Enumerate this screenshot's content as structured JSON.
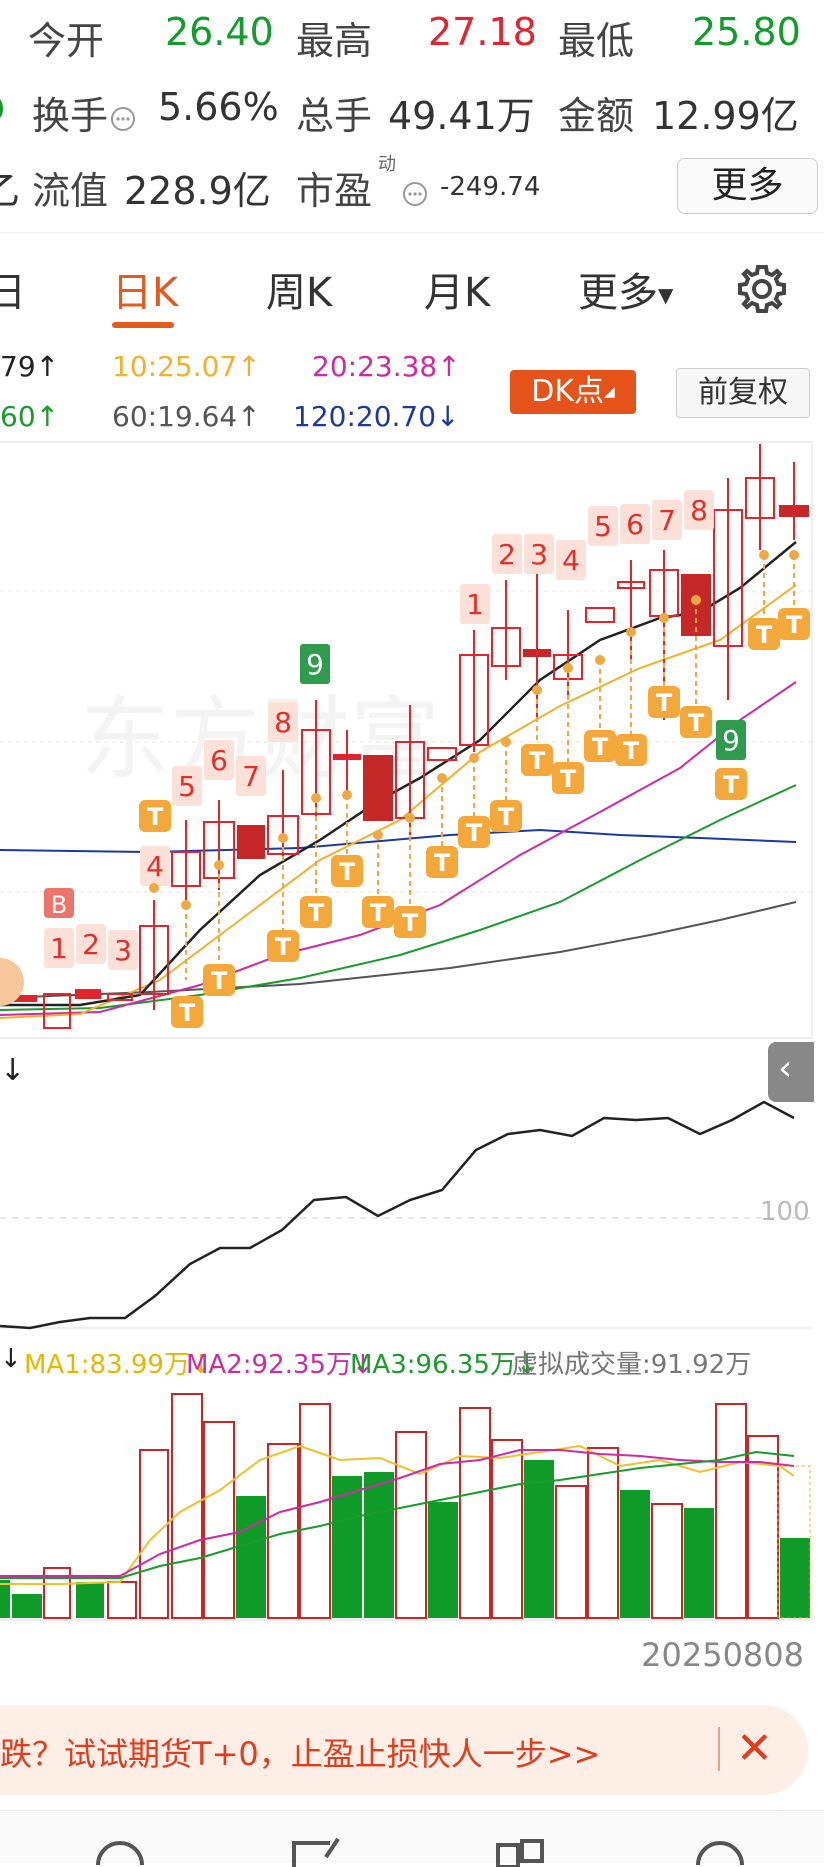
{
  "quote": {
    "open_label": "今开",
    "open_value": "26.40",
    "high_label": "最高",
    "high_value": "27.18",
    "low_label": "最低",
    "low_value": "25.80",
    "turnover_label": "换手",
    "turnover_value": "5.66%",
    "volume_label": "总手",
    "volume_value": "49.41万",
    "amount_label": "金额",
    "amount_value": "12.99亿",
    "float_value_label": "流值",
    "float_value": "228.9亿",
    "pe_label": "市盈",
    "pe_sup": "动",
    "pe_value": "-249.74",
    "more_label": "更多",
    "row2_left_glyph": "9",
    "row3_left_glyph": "乙"
  },
  "tabs": {
    "day_partial": "日",
    "items": [
      "日K",
      "周K",
      "月K",
      "更多"
    ],
    "active": "日K"
  },
  "ma": {
    "ma5_partial": "79↑",
    "ma10": "10:25.07↑",
    "ma20": "20:23.38↑",
    "ma30_partial": "60↑",
    "ma60": "60:19.64↑",
    "ma120": "120:20.70↓",
    "colors": {
      "ma10": "#f0b12b",
      "ma20": "#cc2ba6",
      "ma30": "#1a9b2b",
      "ma60": "#555555",
      "ma120": "#1c3a9b"
    }
  },
  "buttons": {
    "dk": "DK点",
    "fq": "前复权"
  },
  "indicator": {
    "level_label": "100",
    "partial_glyph": "↓"
  },
  "volume": {
    "partial_glyph": "↓",
    "ma1": "MA1:83.99万↓",
    "ma2": "MA2:92.35万↓",
    "ma3": "MA3:96.35万↓",
    "virtual": "虚拟成交量:91.92万",
    "date": "20250808"
  },
  "ad": {
    "text": "跌？试试期货T+0，止盈止损快人一步>>"
  },
  "markers": {
    "b": "B",
    "nums": [
      "1",
      "2",
      "3",
      "4",
      "5",
      "6",
      "7",
      "8",
      "9",
      "1",
      "2",
      "3",
      "4",
      "5",
      "6",
      "7",
      "8",
      "9"
    ],
    "t": "T"
  },
  "colors": {
    "up": "#e1252f",
    "down": "#129c2b",
    "accent": "#e55a1c",
    "ma5": "#222222"
  }
}
